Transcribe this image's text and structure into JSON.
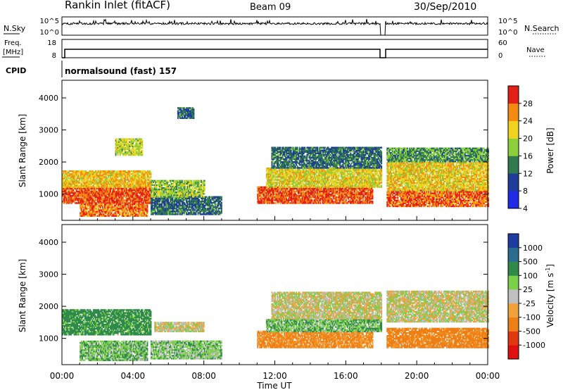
{
  "header": {
    "station": "Rankin Inlet (fitACF)",
    "beam": "Beam 09",
    "date": "30/Sep/2010"
  },
  "status_panel": {
    "nsky_label": "N.Sky",
    "nsky_ticks": [
      "10^5",
      "10^0"
    ],
    "nsearch_label": "N.Search",
    "nsearch_ticks": [
      "10^5",
      "10^0"
    ],
    "freq_label": "Freq.",
    "freq_unit": "[MHz]",
    "freq_ticks": [
      "18",
      "8"
    ],
    "nave_label": "Nave",
    "nave_ticks": [
      "60",
      "0"
    ],
    "cpid_label": "CPID",
    "cpid_value": "normalsound (fast) 157"
  },
  "colors": {
    "power": [
      "#1f2be6",
      "#1f3c9a",
      "#2f7a4f",
      "#8bcf3a",
      "#f0d31f",
      "#f58a10",
      "#e32018"
    ],
    "velocity": [
      "#1e3c9f",
      "#2c6d8f",
      "#2f8a4a",
      "#7ccf48",
      "#c0c0c0",
      "#f3a13a",
      "#ee7f14",
      "#e23812",
      "#e01010"
    ]
  },
  "chart_data": [
    {
      "type": "heatmap",
      "title": "",
      "xlabel": "Time UT",
      "ylabel": "Slant Range [km]",
      "x_ticks": [
        "00:00",
        "04:00",
        "08:00",
        "12:00",
        "16:00",
        "20:00",
        "00:00"
      ],
      "xlim_hours": [
        0,
        24
      ],
      "y_ticks": [
        1000,
        2000,
        3000,
        4000
      ],
      "ylim": [
        180,
        4550
      ],
      "colorbar": {
        "label": "Power [dB]",
        "ticks": [
          4,
          8,
          12,
          16,
          20,
          24,
          28
        ],
        "range": [
          0,
          32
        ]
      },
      "regions": [
        {
          "t0": 0.0,
          "t1": 5.0,
          "r0": 700,
          "r1": 1200,
          "value": 28
        },
        {
          "t0": 0.0,
          "t1": 5.0,
          "r0": 1200,
          "r1": 1700,
          "value": 22
        },
        {
          "t0": 1.0,
          "t1": 4.8,
          "r0": 300,
          "r1": 700,
          "value": 26
        },
        {
          "t0": 5.0,
          "t1": 9.0,
          "r0": 350,
          "r1": 900,
          "value": 10
        },
        {
          "t0": 5.0,
          "t1": 8.0,
          "r0": 900,
          "r1": 1400,
          "value": 16
        },
        {
          "t0": 6.5,
          "t1": 7.4,
          "r0": 3350,
          "r1": 3700,
          "value": 9
        },
        {
          "t0": 3.0,
          "t1": 4.5,
          "r0": 2200,
          "r1": 2700,
          "value": 18
        },
        {
          "t0": 11.0,
          "t1": 17.5,
          "r0": 700,
          "r1": 1200,
          "value": 28
        },
        {
          "t0": 11.5,
          "t1": 18.0,
          "r0": 1200,
          "r1": 1800,
          "value": 20
        },
        {
          "t0": 11.8,
          "t1": 18.0,
          "r0": 1800,
          "r1": 2450,
          "value": 10
        },
        {
          "t0": 18.3,
          "t1": 24.0,
          "r0": 600,
          "r1": 1100,
          "value": 27
        },
        {
          "t0": 18.3,
          "t1": 24.0,
          "r0": 1100,
          "r1": 2000,
          "value": 21
        },
        {
          "t0": 18.3,
          "t1": 24.0,
          "r0": 2000,
          "r1": 2450,
          "value": 13
        }
      ]
    },
    {
      "type": "heatmap",
      "title": "",
      "xlabel": "Time UT",
      "ylabel": "Slant Range [km]",
      "x_ticks": [
        "00:00",
        "04:00",
        "08:00",
        "12:00",
        "16:00",
        "20:00",
        "00:00"
      ],
      "xlim_hours": [
        0,
        24
      ],
      "y_ticks": [
        1000,
        2000,
        3000,
        4000
      ],
      "ylim": [
        180,
        4550
      ],
      "colorbar": {
        "label": "Velocity [m s^-1]",
        "ticks": [
          1000,
          500,
          100,
          25,
          -25,
          -100,
          -500,
          -1000
        ]
      },
      "regions": [
        {
          "t0": 0.0,
          "t1": 5.0,
          "r0": 1100,
          "r1": 1900,
          "value": 150
        },
        {
          "t0": 1.0,
          "t1": 4.8,
          "r0": 300,
          "r1": 900,
          "value": 80
        },
        {
          "t0": 5.0,
          "t1": 9.0,
          "r0": 350,
          "r1": 900,
          "value": 60
        },
        {
          "t0": 5.2,
          "t1": 8.0,
          "r0": 1200,
          "r1": 1500,
          "value": 0
        },
        {
          "t0": 11.0,
          "t1": 17.5,
          "r0": 700,
          "r1": 1200,
          "value": -120
        },
        {
          "t0": 11.5,
          "t1": 18.0,
          "r0": 1200,
          "r1": 1600,
          "value": 80
        },
        {
          "t0": 11.8,
          "t1": 18.0,
          "r0": 1600,
          "r1": 2450,
          "value": 0
        },
        {
          "t0": 18.3,
          "t1": 24.0,
          "r0": 700,
          "r1": 1300,
          "value": -150
        },
        {
          "t0": 18.3,
          "t1": 24.0,
          "r0": 1500,
          "r1": 2450,
          "value": 0
        }
      ]
    }
  ]
}
